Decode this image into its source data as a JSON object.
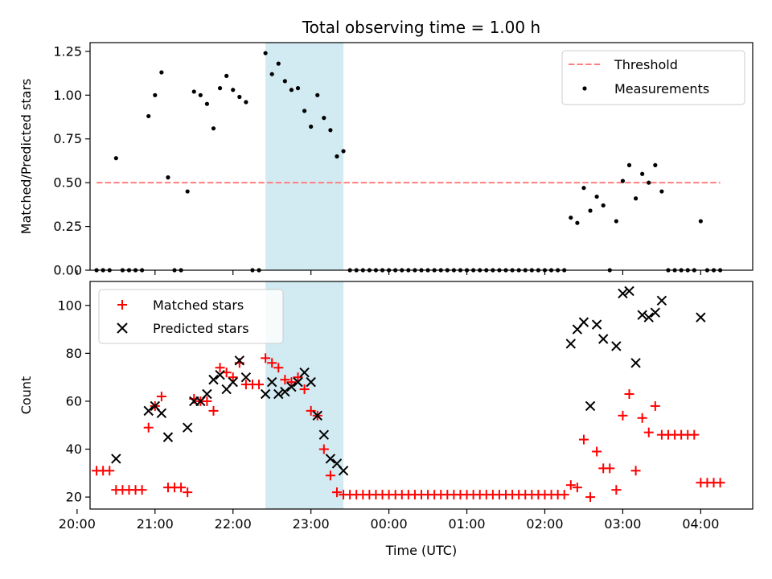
{
  "chart_data": [
    {
      "type": "scatter",
      "title": "Total observing time = 1.00 h",
      "xlabel": "",
      "ylabel": "Matched/Predicted stars",
      "ylim": [
        0,
        1.3
      ],
      "yticks": [
        0.0,
        0.25,
        0.5,
        0.75,
        1.0,
        1.25
      ],
      "ytick_labels": [
        "0.00",
        "0.25",
        "0.50",
        "0.75",
        "1.00",
        "1.25"
      ],
      "xlim": [
        "20:10",
        "04:40"
      ],
      "xticks": [
        "20:00",
        "21:00",
        "22:00",
        "23:00",
        "00:00",
        "01:00",
        "02:00",
        "03:00",
        "04:00"
      ],
      "grid": false,
      "legend_position": "upper right",
      "highlight_span": {
        "start": "22:25",
        "end": "23:25",
        "color": "#add8e6"
      },
      "threshold": {
        "name": "Threshold",
        "value": 0.5,
        "x_start": "20:15",
        "x_end": "04:15",
        "color": "#ff7f7f",
        "style": "dashed"
      },
      "series": [
        {
          "name": "Measurements",
          "color": "#000000",
          "marker": "dot",
          "points": [
            [
              "20:15",
              0
            ],
            [
              "20:20",
              0
            ],
            [
              "20:25",
              0
            ],
            [
              "20:30",
              0.64
            ],
            [
              "20:35",
              0
            ],
            [
              "20:40",
              0
            ],
            [
              "20:45",
              0
            ],
            [
              "20:50",
              0
            ],
            [
              "20:55",
              0.88
            ],
            [
              "21:00",
              1.0
            ],
            [
              "21:05",
              1.13
            ],
            [
              "21:10",
              0.53
            ],
            [
              "21:15",
              0
            ],
            [
              "21:20",
              0
            ],
            [
              "21:25",
              0.45
            ],
            [
              "21:30",
              1.02
            ],
            [
              "21:35",
              1.0
            ],
            [
              "21:40",
              0.95
            ],
            [
              "21:45",
              0.81
            ],
            [
              "21:50",
              1.04
            ],
            [
              "21:55",
              1.11
            ],
            [
              "22:00",
              1.03
            ],
            [
              "22:05",
              0.99
            ],
            [
              "22:10",
              0.96
            ],
            [
              "22:15",
              0
            ],
            [
              "22:20",
              0
            ],
            [
              "22:25",
              1.24
            ],
            [
              "22:30",
              1.12
            ],
            [
              "22:35",
              1.18
            ],
            [
              "22:40",
              1.08
            ],
            [
              "22:45",
              1.03
            ],
            [
              "22:50",
              1.04
            ],
            [
              "22:55",
              0.91
            ],
            [
              "23:00",
              0.82
            ],
            [
              "23:05",
              1.0
            ],
            [
              "23:10",
              0.87
            ],
            [
              "23:15",
              0.8
            ],
            [
              "23:20",
              0.65
            ],
            [
              "23:25",
              0.68
            ],
            [
              "23:30",
              0
            ],
            [
              "23:35",
              0
            ],
            [
              "23:40",
              0
            ],
            [
              "23:45",
              0
            ],
            [
              "23:50",
              0
            ],
            [
              "23:55",
              0
            ],
            [
              "00:00",
              0
            ],
            [
              "00:05",
              0
            ],
            [
              "00:10",
              0
            ],
            [
              "00:15",
              0
            ],
            [
              "00:20",
              0
            ],
            [
              "00:25",
              0
            ],
            [
              "00:30",
              0
            ],
            [
              "00:35",
              0
            ],
            [
              "00:40",
              0
            ],
            [
              "00:45",
              0
            ],
            [
              "00:50",
              0
            ],
            [
              "00:55",
              0
            ],
            [
              "01:00",
              0
            ],
            [
              "01:05",
              0
            ],
            [
              "01:10",
              0
            ],
            [
              "01:15",
              0
            ],
            [
              "01:20",
              0
            ],
            [
              "01:25",
              0
            ],
            [
              "01:30",
              0
            ],
            [
              "01:35",
              0
            ],
            [
              "01:40",
              0
            ],
            [
              "01:45",
              0
            ],
            [
              "01:50",
              0
            ],
            [
              "01:55",
              0
            ],
            [
              "02:00",
              0
            ],
            [
              "02:05",
              0
            ],
            [
              "02:10",
              0
            ],
            [
              "02:15",
              0
            ],
            [
              "02:20",
              0.3
            ],
            [
              "02:25",
              0.27
            ],
            [
              "02:30",
              0.47
            ],
            [
              "02:35",
              0.34
            ],
            [
              "02:40",
              0.42
            ],
            [
              "02:45",
              0.37
            ],
            [
              "02:50",
              0
            ],
            [
              "02:55",
              0.28
            ],
            [
              "03:00",
              0.51
            ],
            [
              "03:05",
              0.6
            ],
            [
              "03:10",
              0.41
            ],
            [
              "03:15",
              0.55
            ],
            [
              "03:20",
              0.5
            ],
            [
              "03:25",
              0.6
            ],
            [
              "03:30",
              0.45
            ],
            [
              "03:35",
              0
            ],
            [
              "03:40",
              0
            ],
            [
              "03:45",
              0
            ],
            [
              "03:50",
              0
            ],
            [
              "03:55",
              0
            ],
            [
              "04:00",
              0.28
            ],
            [
              "04:05",
              0
            ],
            [
              "04:10",
              0
            ],
            [
              "04:15",
              0
            ]
          ]
        }
      ]
    },
    {
      "type": "scatter",
      "title": "",
      "xlabel": "Time (UTC)",
      "ylabel": "Count",
      "ylim": [
        15,
        110
      ],
      "yticks": [
        20,
        40,
        60,
        80,
        100
      ],
      "ytick_labels": [
        "20",
        "40",
        "60",
        "80",
        "100"
      ],
      "xlim": [
        "20:10",
        "04:40"
      ],
      "xticks": [
        "20:00",
        "21:00",
        "22:00",
        "23:00",
        "00:00",
        "01:00",
        "02:00",
        "03:00",
        "04:00"
      ],
      "xtick_labels": [
        "20:00",
        "21:00",
        "22:00",
        "23:00",
        "00:00",
        "01:00",
        "02:00",
        "03:00",
        "04:00"
      ],
      "grid": false,
      "legend_position": "upper left",
      "highlight_span": {
        "start": "22:25",
        "end": "23:25",
        "color": "#add8e6"
      },
      "series": [
        {
          "name": "Matched stars",
          "color": "#ff0000",
          "marker": "plus",
          "points": [
            [
              "20:15",
              31
            ],
            [
              "20:20",
              31
            ],
            [
              "20:25",
              31
            ],
            [
              "20:30",
              23
            ],
            [
              "20:35",
              23
            ],
            [
              "20:40",
              23
            ],
            [
              "20:45",
              23
            ],
            [
              "20:50",
              23
            ],
            [
              "20:55",
              49
            ],
            [
              "21:00",
              58
            ],
            [
              "21:05",
              62
            ],
            [
              "21:10",
              24
            ],
            [
              "21:15",
              24
            ],
            [
              "21:20",
              24
            ],
            [
              "21:25",
              22
            ],
            [
              "21:30",
              61
            ],
            [
              "21:35",
              60
            ],
            [
              "21:40",
              60
            ],
            [
              "21:45",
              56
            ],
            [
              "21:50",
              74
            ],
            [
              "21:55",
              72
            ],
            [
              "22:00",
              70
            ],
            [
              "22:05",
              76
            ],
            [
              "22:10",
              67
            ],
            [
              "22:15",
              67
            ],
            [
              "22:20",
              67
            ],
            [
              "22:25",
              78
            ],
            [
              "22:30",
              76
            ],
            [
              "22:35",
              74
            ],
            [
              "22:40",
              69
            ],
            [
              "22:45",
              68
            ],
            [
              "22:50",
              70
            ],
            [
              "22:55",
              65
            ],
            [
              "23:00",
              56
            ],
            [
              "23:05",
              54
            ],
            [
              "23:10",
              40
            ],
            [
              "23:15",
              29
            ],
            [
              "23:20",
              22
            ],
            [
              "23:25",
              21
            ],
            [
              "23:30",
              21
            ],
            [
              "23:35",
              21
            ],
            [
              "23:40",
              21
            ],
            [
              "23:45",
              21
            ],
            [
              "23:50",
              21
            ],
            [
              "23:55",
              21
            ],
            [
              "00:00",
              21
            ],
            [
              "00:05",
              21
            ],
            [
              "00:10",
              21
            ],
            [
              "00:15",
              21
            ],
            [
              "00:20",
              21
            ],
            [
              "00:25",
              21
            ],
            [
              "00:30",
              21
            ],
            [
              "00:35",
              21
            ],
            [
              "00:40",
              21
            ],
            [
              "00:45",
              21
            ],
            [
              "00:50",
              21
            ],
            [
              "00:55",
              21
            ],
            [
              "01:00",
              21
            ],
            [
              "01:05",
              21
            ],
            [
              "01:10",
              21
            ],
            [
              "01:15",
              21
            ],
            [
              "01:20",
              21
            ],
            [
              "01:25",
              21
            ],
            [
              "01:30",
              21
            ],
            [
              "01:35",
              21
            ],
            [
              "01:40",
              21
            ],
            [
              "01:45",
              21
            ],
            [
              "01:50",
              21
            ],
            [
              "01:55",
              21
            ],
            [
              "02:00",
              21
            ],
            [
              "02:05",
              21
            ],
            [
              "02:10",
              21
            ],
            [
              "02:15",
              21
            ],
            [
              "02:20",
              25
            ],
            [
              "02:25",
              24
            ],
            [
              "02:30",
              44
            ],
            [
              "02:35",
              20
            ],
            [
              "02:40",
              39
            ],
            [
              "02:45",
              32
            ],
            [
              "02:50",
              32
            ],
            [
              "02:55",
              23
            ],
            [
              "03:00",
              54
            ],
            [
              "03:05",
              63
            ],
            [
              "03:10",
              31
            ],
            [
              "03:15",
              53
            ],
            [
              "03:20",
              47
            ],
            [
              "03:25",
              58
            ],
            [
              "03:30",
              46
            ],
            [
              "03:35",
              46
            ],
            [
              "03:40",
              46
            ],
            [
              "03:45",
              46
            ],
            [
              "03:50",
              46
            ],
            [
              "03:55",
              46
            ],
            [
              "04:00",
              26
            ],
            [
              "04:05",
              26
            ],
            [
              "04:10",
              26
            ],
            [
              "04:15",
              26
            ]
          ]
        },
        {
          "name": "Predicted stars",
          "color": "#000000",
          "marker": "x",
          "points": [
            [
              "20:30",
              36
            ],
            [
              "20:55",
              56
            ],
            [
              "21:00",
              58
            ],
            [
              "21:05",
              55
            ],
            [
              "21:10",
              45
            ],
            [
              "21:25",
              49
            ],
            [
              "21:30",
              60
            ],
            [
              "21:35",
              60
            ],
            [
              "21:40",
              63
            ],
            [
              "21:45",
              69
            ],
            [
              "21:50",
              71
            ],
            [
              "21:55",
              65
            ],
            [
              "22:00",
              68
            ],
            [
              "22:05",
              77
            ],
            [
              "22:10",
              70
            ],
            [
              "22:25",
              63
            ],
            [
              "22:30",
              68
            ],
            [
              "22:35",
              63
            ],
            [
              "22:40",
              64
            ],
            [
              "22:45",
              66
            ],
            [
              "22:50",
              68
            ],
            [
              "22:55",
              72
            ],
            [
              "23:00",
              68
            ],
            [
              "23:05",
              54
            ],
            [
              "23:10",
              46
            ],
            [
              "23:15",
              36
            ],
            [
              "23:20",
              34
            ],
            [
              "23:25",
              31
            ],
            [
              "02:20",
              84
            ],
            [
              "02:25",
              90
            ],
            [
              "02:30",
              93
            ],
            [
              "02:35",
              58
            ],
            [
              "02:40",
              92
            ],
            [
              "02:45",
              86
            ],
            [
              "02:55",
              83
            ],
            [
              "03:00",
              105
            ],
            [
              "03:05",
              106
            ],
            [
              "03:10",
              76
            ],
            [
              "03:15",
              96
            ],
            [
              "03:20",
              95
            ],
            [
              "03:25",
              97
            ],
            [
              "03:30",
              102
            ],
            [
              "04:00",
              95
            ]
          ]
        }
      ]
    }
  ]
}
